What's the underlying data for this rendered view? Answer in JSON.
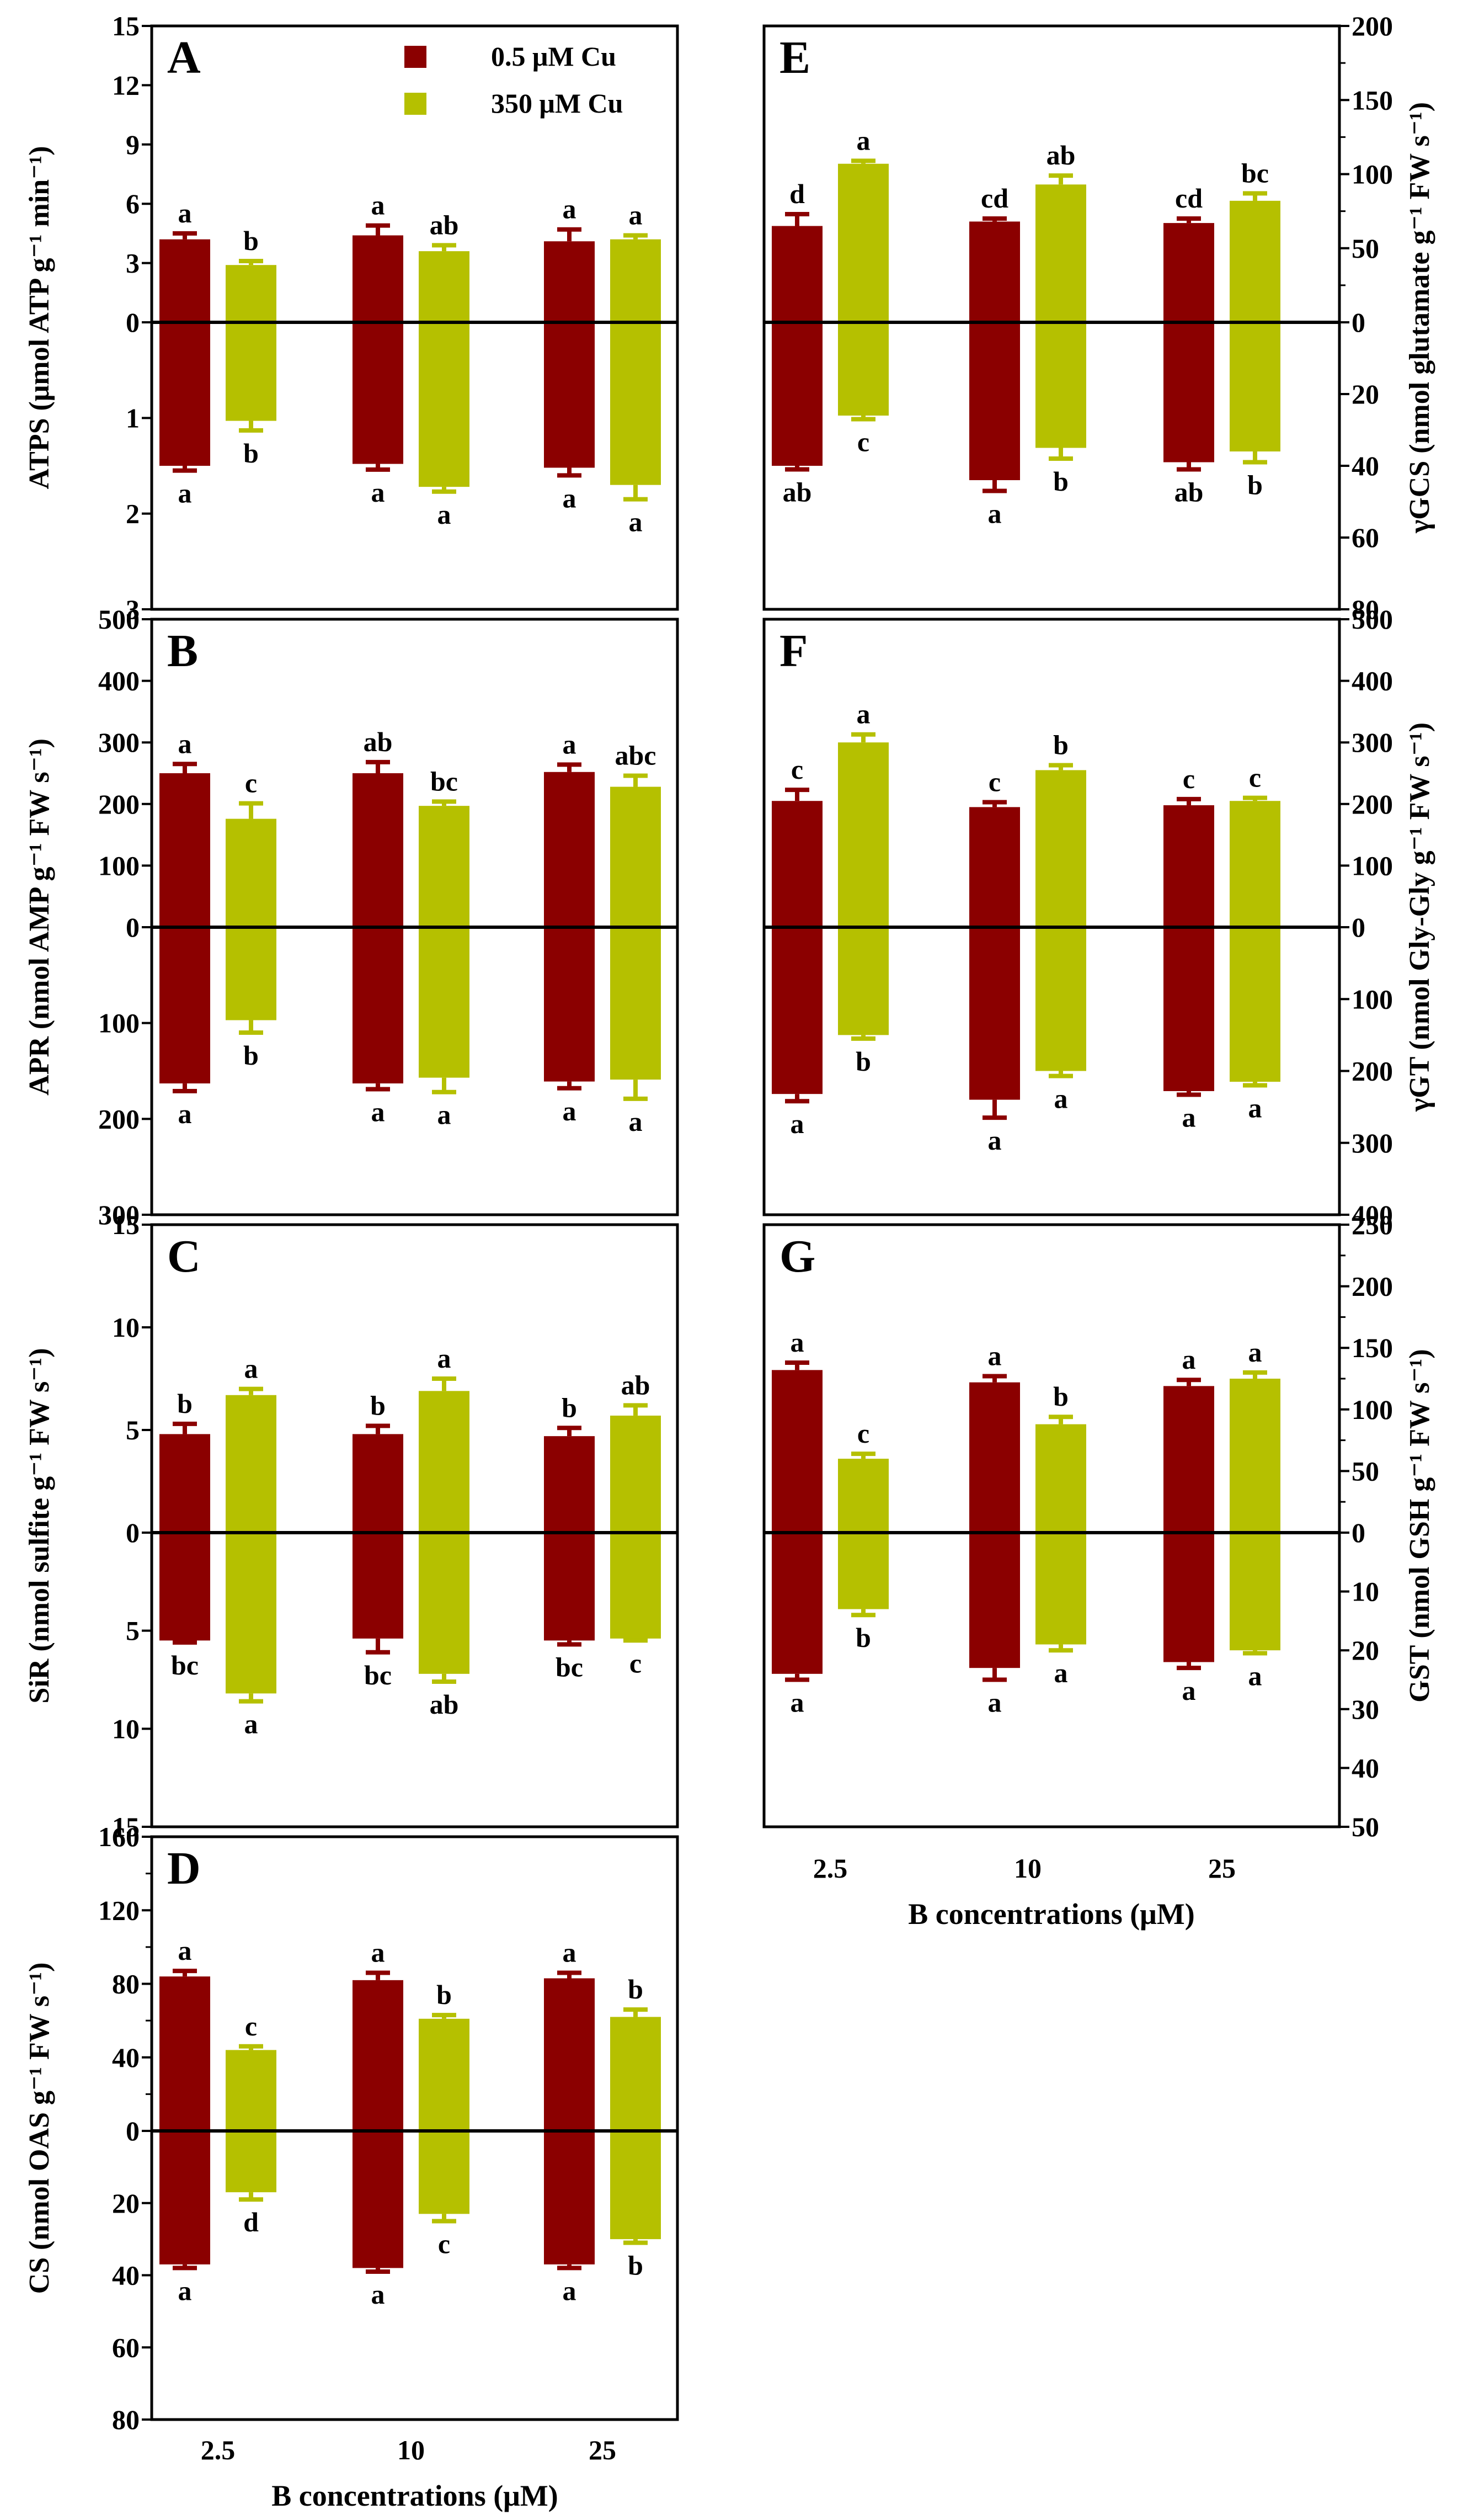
{
  "legend": {
    "items": [
      {
        "label": "0.5 μM Cu",
        "color": "#8b0000"
      },
      {
        "label": "350 μM Cu",
        "color": "#b5c000"
      }
    ]
  },
  "x_categories": [
    "2.5",
    "10",
    "25"
  ],
  "x_axis_label": "B concentrations (μM)",
  "chart_data": [
    {
      "type": "bar",
      "panel": "A",
      "side": "left",
      "ylabel": "ATPS (μmol ATP g⁻¹ min⁻¹)",
      "upper": {
        "ticks": [
          "0",
          "3",
          "6",
          "9",
          "12",
          "15"
        ],
        "max": 15
      },
      "lower": {
        "ticks": [
          "1",
          "2",
          "3"
        ],
        "max": 3
      },
      "categories": [
        "2.5",
        "10",
        "25"
      ],
      "series": [
        {
          "name": "0.5 μM Cu",
          "up": [
            4.2,
            4.4,
            4.1
          ],
          "up_err": [
            0.3,
            0.5,
            0.6
          ],
          "up_letters": [
            "a",
            "a",
            "a"
          ],
          "down": [
            1.5,
            1.48,
            1.52
          ],
          "down_err": [
            0.05,
            0.06,
            0.08
          ],
          "down_letters": [
            "a",
            "a",
            "a"
          ]
        },
        {
          "name": "350 μM Cu",
          "up": [
            2.9,
            3.6,
            4.2
          ],
          "up_err": [
            0.2,
            0.3,
            0.2
          ],
          "up_letters": [
            "b",
            "ab",
            "a"
          ],
          "down": [
            1.03,
            1.72,
            1.7
          ],
          "down_err": [
            0.1,
            0.05,
            0.15
          ],
          "down_letters": [
            "b",
            "a",
            "a"
          ]
        }
      ]
    },
    {
      "type": "bar",
      "panel": "B",
      "side": "left",
      "ylabel": "APR (nmol AMP g⁻¹ FW s⁻¹)",
      "upper": {
        "ticks": [
          "0",
          "100",
          "200",
          "300",
          "400",
          "500"
        ],
        "max": 500
      },
      "lower": {
        "ticks": [
          "100",
          "200",
          "300"
        ],
        "max": 300
      },
      "categories": [
        "2.5",
        "10",
        "25"
      ],
      "series": [
        {
          "name": "0.5 μM Cu",
          "up": [
            250,
            250,
            252
          ],
          "up_err": [
            15,
            18,
            12
          ],
          "up_letters": [
            "a",
            "ab",
            "a"
          ],
          "down": [
            163,
            163,
            161
          ],
          "down_err": [
            8,
            6,
            7
          ],
          "down_letters": [
            "a",
            "a",
            "a"
          ]
        },
        {
          "name": "350 μM Cu",
          "up": [
            176,
            197,
            228
          ],
          "up_err": [
            25,
            7,
            18
          ],
          "up_letters": [
            "c",
            "bc",
            "abc"
          ],
          "down": [
            97,
            157,
            159
          ],
          "down_err": [
            13,
            15,
            20
          ],
          "down_letters": [
            "b",
            "a",
            "a"
          ]
        }
      ]
    },
    {
      "type": "bar",
      "panel": "C",
      "side": "left",
      "ylabel": "SiR (nmol sulfite g⁻¹ FW s⁻¹)",
      "upper": {
        "ticks": [
          "0",
          "5",
          "10",
          "15"
        ],
        "max": 15
      },
      "lower": {
        "ticks": [
          "5",
          "10",
          "15"
        ],
        "max": 15
      },
      "categories": [
        "2.5",
        "10",
        "25"
      ],
      "series": [
        {
          "name": "0.5 μM Cu",
          "up": [
            4.8,
            4.8,
            4.7
          ],
          "up_err": [
            0.5,
            0.4,
            0.4
          ],
          "up_letters": [
            "b",
            "b",
            "b"
          ],
          "down": [
            5.5,
            5.4,
            5.5
          ],
          "down_err": [
            0.1,
            0.7,
            0.2
          ],
          "down_letters": [
            "bc",
            "bc",
            "bc"
          ]
        },
        {
          "name": "350 μM Cu",
          "up": [
            6.7,
            6.9,
            5.7
          ],
          "up_err": [
            0.3,
            0.6,
            0.5
          ],
          "up_letters": [
            "a",
            "a",
            "ab"
          ],
          "down": [
            8.2,
            7.2,
            5.4
          ],
          "down_err": [
            0.4,
            0.4,
            0.1
          ],
          "down_letters": [
            "a",
            "ab",
            "c"
          ]
        }
      ]
    },
    {
      "type": "bar",
      "panel": "D",
      "side": "left",
      "ylabel": "CS (nmol OAS g⁻¹ FW s⁻¹)",
      "upper": {
        "ticks": [
          "0",
          "40",
          "80",
          "120",
          "160"
        ],
        "minor": [
          "20",
          "60",
          "100",
          "140"
        ],
        "max": 160
      },
      "lower": {
        "ticks": [
          "20",
          "40",
          "60",
          "80"
        ],
        "max": 80
      },
      "categories": [
        "2.5",
        "10",
        "25"
      ],
      "series": [
        {
          "name": "0.5 μM Cu",
          "up": [
            84,
            82,
            83
          ],
          "up_err": [
            3,
            4,
            3
          ],
          "up_letters": [
            "a",
            "a",
            "a"
          ],
          "down": [
            37,
            38,
            37
          ],
          "down_err": [
            1,
            1,
            1
          ],
          "down_letters": [
            "a",
            "a",
            "a"
          ]
        },
        {
          "name": "350 μM Cu",
          "up": [
            44,
            61,
            62
          ],
          "up_err": [
            2,
            2,
            4
          ],
          "up_letters": [
            "c",
            "b",
            "b"
          ],
          "down": [
            17,
            23,
            30
          ],
          "down_err": [
            2,
            2,
            1
          ],
          "down_letters": [
            "d",
            "c",
            "b"
          ]
        }
      ]
    },
    {
      "type": "bar",
      "panel": "E",
      "side": "right",
      "ylabel": "γGCS (nmol glutamate g⁻¹ FW s⁻¹)",
      "upper": {
        "ticks": [
          "0",
          "50",
          "100",
          "150",
          "200"
        ],
        "minor": [
          "25",
          "75",
          "125",
          "175"
        ],
        "max": 200
      },
      "lower": {
        "ticks": [
          "20",
          "40",
          "60",
          "80"
        ],
        "max": 80
      },
      "categories": [
        "2.5",
        "10",
        "25"
      ],
      "series": [
        {
          "name": "0.5 μM Cu",
          "up": [
            65,
            68,
            67
          ],
          "up_err": [
            8,
            2,
            3
          ],
          "up_letters": [
            "d",
            "cd",
            "cd"
          ],
          "down": [
            40,
            44,
            39
          ],
          "down_err": [
            1,
            3,
            2
          ],
          "down_letters": [
            "ab",
            "a",
            "ab"
          ]
        },
        {
          "name": "350 μM Cu",
          "up": [
            107,
            93,
            82
          ],
          "up_err": [
            2,
            6,
            5
          ],
          "up_letters": [
            "a",
            "ab",
            "bc"
          ],
          "down": [
            26,
            35,
            36
          ],
          "down_err": [
            1,
            3,
            3
          ],
          "down_letters": [
            "c",
            "b",
            "b"
          ]
        }
      ]
    },
    {
      "type": "bar",
      "panel": "F",
      "side": "right",
      "ylabel": "γGT (nmol Gly-Gly g⁻¹ FW s⁻¹)",
      "upper": {
        "ticks": [
          "0",
          "100",
          "200",
          "300",
          "400",
          "500"
        ],
        "max": 500
      },
      "lower": {
        "ticks": [
          "100",
          "200",
          "300",
          "400"
        ],
        "max": 400
      },
      "categories": [
        "2.5",
        "10",
        "25"
      ],
      "series": [
        {
          "name": "0.5 μM Cu",
          "up": [
            205,
            195,
            198
          ],
          "up_err": [
            18,
            8,
            10
          ],
          "up_letters": [
            "c",
            "c",
            "c"
          ],
          "down": [
            232,
            240,
            228
          ],
          "down_err": [
            10,
            25,
            5
          ],
          "down_letters": [
            "a",
            "a",
            "a"
          ]
        },
        {
          "name": "350 μM Cu",
          "up": [
            300,
            255,
            205
          ],
          "up_err": [
            13,
            8,
            5
          ],
          "up_letters": [
            "a",
            "b",
            "c"
          ],
          "down": [
            150,
            200,
            215
          ],
          "down_err": [
            5,
            7,
            5
          ],
          "down_letters": [
            "b",
            "a",
            "a"
          ]
        }
      ]
    },
    {
      "type": "bar",
      "panel": "G",
      "side": "right",
      "ylabel": "GST (nmol GSH g⁻¹ FW s⁻¹)",
      "upper": {
        "ticks": [
          "0",
          "50",
          "100",
          "150",
          "200",
          "250"
        ],
        "minor": [
          "25",
          "75",
          "125",
          "175",
          "225"
        ],
        "max": 250
      },
      "lower": {
        "ticks": [
          "10",
          "20",
          "30",
          "40",
          "50"
        ],
        "max": 50
      },
      "categories": [
        "2.5",
        "10",
        "25"
      ],
      "series": [
        {
          "name": "0.5 μM Cu",
          "up": [
            132,
            122,
            119
          ],
          "up_err": [
            6,
            5,
            5
          ],
          "up_letters": [
            "a",
            "a",
            "a"
          ],
          "down": [
            24,
            23,
            22
          ],
          "down_err": [
            1,
            2,
            1
          ],
          "down_letters": [
            "a",
            "a",
            "a"
          ]
        },
        {
          "name": "350 μM Cu",
          "up": [
            60,
            88,
            125
          ],
          "up_err": [
            4,
            6,
            5
          ],
          "up_letters": [
            "c",
            "b",
            "a"
          ],
          "down": [
            13,
            19,
            20
          ],
          "down_err": [
            1,
            1,
            0.5
          ],
          "down_letters": [
            "b",
            "a",
            "a"
          ]
        }
      ]
    }
  ]
}
